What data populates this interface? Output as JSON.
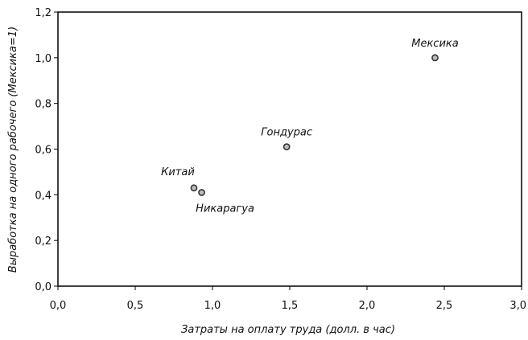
{
  "chart_data": {
    "type": "scatter",
    "title": "",
    "xlabel": "Затраты на оплату труда (долл. в час)",
    "ylabel": "Выработка на одного рабочего (Мексика=1)",
    "xlim": [
      0.0,
      3.0
    ],
    "ylim": [
      0.0,
      1.2
    ],
    "xticks": [
      0.0,
      0.5,
      1.0,
      1.5,
      2.0,
      2.5,
      3.0
    ],
    "yticks": [
      0.0,
      0.2,
      0.4,
      0.6,
      0.8,
      1.0,
      1.2
    ],
    "xtick_labels": [
      "0,0",
      "0,5",
      "1,0",
      "1,5",
      "2,0",
      "2,5",
      "3,0"
    ],
    "ytick_labels": [
      "0,0",
      "0,2",
      "0,4",
      "0,6",
      "0,8",
      "1,0",
      "1,2"
    ],
    "grid": false,
    "legend": "none",
    "points": [
      {
        "label": "Китай",
        "x": 0.88,
        "y": 0.43,
        "label_position": "above-left"
      },
      {
        "label": "Никарагуа",
        "x": 0.93,
        "y": 0.41,
        "label_position": "below-right"
      },
      {
        "label": "Гондурас",
        "x": 1.48,
        "y": 0.61,
        "label_position": "above"
      },
      {
        "label": "Мексика",
        "x": 2.44,
        "y": 1.0,
        "label_position": "above"
      }
    ],
    "marker_color": "#333333",
    "axis_color": "#000000"
  }
}
